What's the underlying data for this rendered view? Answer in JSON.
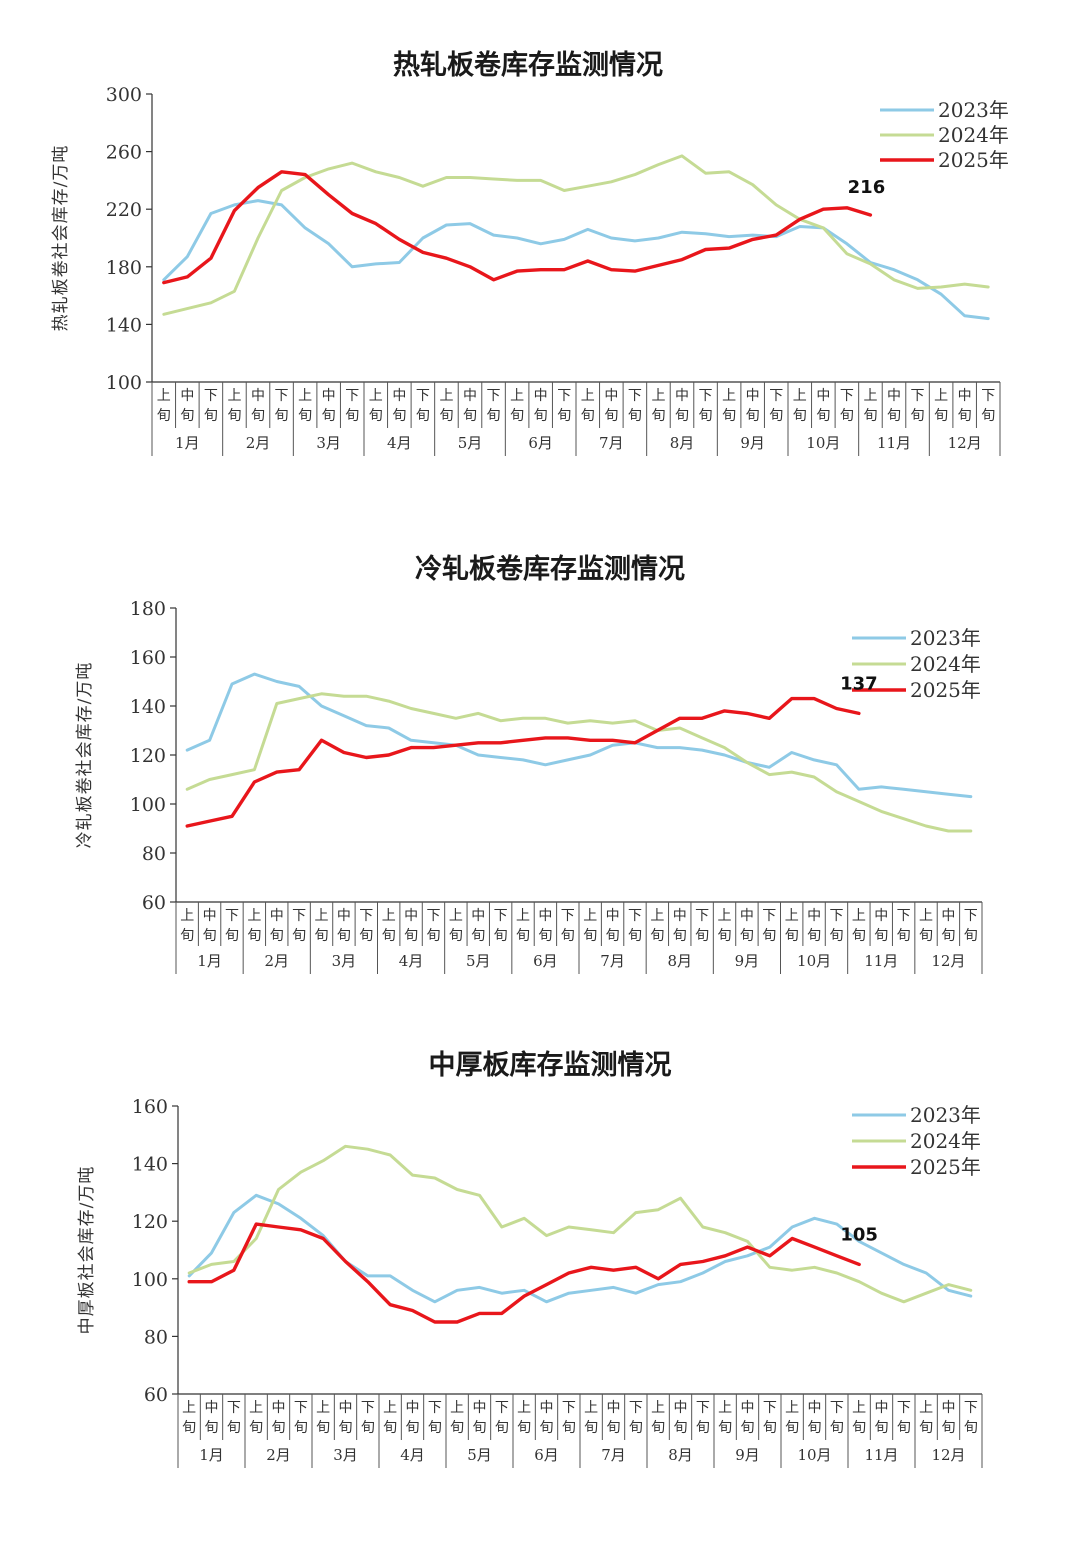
{
  "chart_data": [
    {
      "type": "line",
      "title": "热轧板卷库存监测情况",
      "ylabel": "热轧板卷社会库存/万吨",
      "ylim": [
        100,
        300
      ],
      "yticks": [
        100,
        140,
        180,
        220,
        260,
        300
      ],
      "dekads": [
        "上旬",
        "中旬",
        "下旬"
      ],
      "months": [
        "1月",
        "2月",
        "3月",
        "4月",
        "5月",
        "6月",
        "7月",
        "8月",
        "9月",
        "10月",
        "11月",
        "12月"
      ],
      "legend_position": "top-right",
      "grid": false,
      "series": [
        {
          "name": "2023年",
          "color": "#8ecae6",
          "values": [
            171,
            187,
            217,
            223,
            226,
            223,
            207,
            196,
            180,
            182,
            183,
            200,
            209,
            210,
            202,
            200,
            196,
            199,
            206,
            200,
            198,
            200,
            204,
            203,
            201,
            202,
            201,
            208,
            207,
            196,
            183,
            178,
            171,
            161,
            146,
            144
          ]
        },
        {
          "name": "2024年",
          "color": "#c5db94",
          "values": [
            147,
            151,
            155,
            163,
            200,
            233,
            242,
            248,
            252,
            246,
            242,
            236,
            242,
            242,
            241,
            240,
            240,
            233,
            236,
            239,
            244,
            251,
            257,
            245,
            246,
            237,
            223,
            213,
            207,
            189,
            182,
            171,
            165,
            166,
            168,
            166
          ]
        },
        {
          "name": "2025年",
          "color": "#e8161b",
          "values": [
            169,
            173,
            186,
            219,
            235,
            246,
            244,
            230,
            217,
            210,
            199,
            190,
            186,
            180,
            171,
            177,
            178,
            178,
            184,
            178,
            177,
            181,
            185,
            192,
            193,
            199,
            202,
            213,
            220,
            221,
            216
          ]
        }
      ],
      "annotation": "216"
    },
    {
      "type": "line",
      "title": "冷轧板卷库存监测情况",
      "ylabel": "冷轧板卷社会库存/万吨",
      "ylim": [
        60,
        180
      ],
      "yticks": [
        60,
        80,
        100,
        120,
        140,
        160,
        180
      ],
      "dekads": [
        "上旬",
        "中旬",
        "下旬"
      ],
      "months": [
        "1月",
        "2月",
        "3月",
        "4月",
        "5月",
        "6月",
        "7月",
        "8月",
        "9月",
        "10月",
        "11月",
        "12月"
      ],
      "legend_position": "top-right",
      "grid": false,
      "series": [
        {
          "name": "2023年",
          "color": "#8ecae6",
          "values": [
            122,
            126,
            149,
            153,
            150,
            148,
            140,
            136,
            132,
            131,
            126,
            125,
            124,
            120,
            119,
            118,
            116,
            118,
            120,
            124,
            125,
            123,
            123,
            122,
            120,
            117,
            115,
            121,
            118,
            116,
            106,
            107,
            106,
            105,
            104,
            103
          ]
        },
        {
          "name": "2024年",
          "color": "#c5db94",
          "values": [
            106,
            110,
            112,
            114,
            141,
            143,
            145,
            144,
            144,
            142,
            139,
            137,
            135,
            137,
            134,
            135,
            135,
            133,
            134,
            133,
            134,
            130,
            131,
            127,
            123,
            117,
            112,
            113,
            111,
            105,
            101,
            97,
            94,
            91,
            89,
            89
          ]
        },
        {
          "name": "2025年",
          "color": "#e8161b",
          "values": [
            91,
            93,
            95,
            109,
            113,
            114,
            126,
            121,
            119,
            120,
            123,
            123,
            124,
            125,
            125,
            126,
            127,
            127,
            126,
            126,
            125,
            130,
            135,
            135,
            138,
            137,
            135,
            143,
            143,
            139,
            137
          ]
        }
      ],
      "annotation": "137"
    },
    {
      "type": "line",
      "title": "中厚板库存监测情况",
      "ylabel": "中厚板社会库存/万吨",
      "ylim": [
        60,
        160
      ],
      "yticks": [
        60,
        80,
        100,
        120,
        140,
        160
      ],
      "dekads": [
        "上旬",
        "中旬",
        "下旬"
      ],
      "months": [
        "1月",
        "2月",
        "3月",
        "4月",
        "5月",
        "6月",
        "7月",
        "8月",
        "9月",
        "10月",
        "11月",
        "12月"
      ],
      "legend_position": "top-right",
      "grid": false,
      "series": [
        {
          "name": "2023年",
          "color": "#8ecae6",
          "values": [
            101,
            109,
            123,
            129,
            126,
            121,
            115,
            106,
            101,
            101,
            96,
            92,
            96,
            97,
            95,
            96,
            92,
            95,
            96,
            97,
            95,
            98,
            99,
            102,
            106,
            108,
            111,
            118,
            121,
            119,
            113,
            109,
            105,
            102,
            96,
            94
          ]
        },
        {
          "name": "2024年",
          "color": "#c5db94",
          "values": [
            102,
            105,
            106,
            114,
            131,
            137,
            141,
            146,
            145,
            143,
            136,
            135,
            131,
            129,
            118,
            121,
            115,
            118,
            117,
            116,
            123,
            124,
            128,
            118,
            116,
            113,
            104,
            103,
            104,
            102,
            99,
            95,
            92,
            95,
            98,
            96
          ]
        },
        {
          "name": "2025年",
          "color": "#e8161b",
          "values": [
            99,
            99,
            103,
            119,
            118,
            117,
            114,
            106,
            99,
            91,
            89,
            85,
            85,
            88,
            88,
            94,
            98,
            102,
            104,
            103,
            104,
            100,
            105,
            106,
            108,
            111,
            108,
            114,
            111,
            108,
            105
          ]
        }
      ],
      "annotation": "105"
    }
  ]
}
